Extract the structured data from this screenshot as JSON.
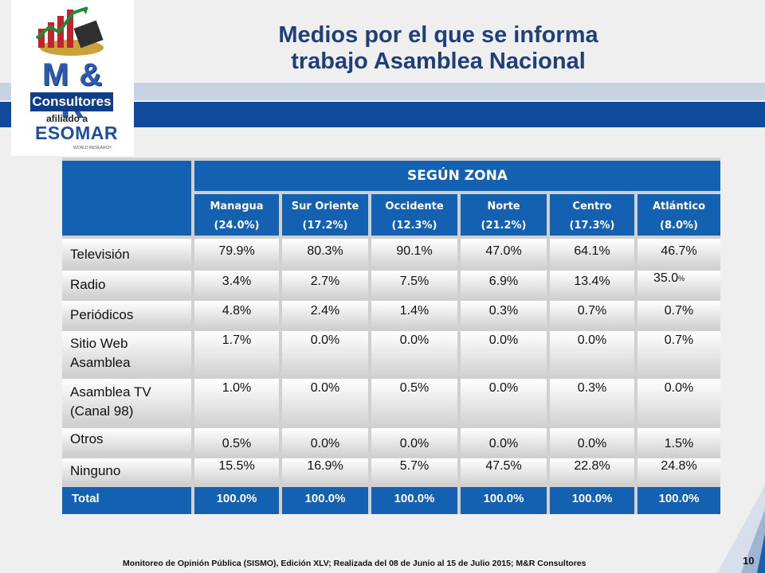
{
  "header": {
    "title_line1": "Medios por el que se informa",
    "title_line2": "trabajo Asamblea Nacional"
  },
  "logo": {
    "brand": "M & R",
    "name": "Consultores",
    "affiliation": "afiliado a",
    "partner": "ESOMAR",
    "partner_sub": "WORLD RESEARCH"
  },
  "table": {
    "group_header": "SEGÚN ZONA",
    "columns": [
      {
        "name": "Managua",
        "share": "(24.0%)"
      },
      {
        "name": "Sur Oriente",
        "share": "(17.2%)"
      },
      {
        "name": "Occidente",
        "share": "(12.3%)"
      },
      {
        "name": "Norte",
        "share": "(21.2%)"
      },
      {
        "name": "Centro",
        "share": "(17.3%)"
      },
      {
        "name": "Atlántico",
        "share": "(8.0%)"
      }
    ],
    "rows": [
      {
        "label": "Televisión",
        "values": [
          "79.9%",
          "80.3%",
          "90.1%",
          "47.0%",
          "64.1%",
          "46.7%"
        ]
      },
      {
        "label": "Radio",
        "values": [
          "3.4%",
          "2.7%",
          "7.5%",
          "6.9%",
          "13.4%",
          "35.0"
        ]
      },
      {
        "label": "Periódicos",
        "values": [
          "4.8%",
          "2.4%",
          "1.4%",
          "0.3%",
          "0.7%",
          "0.7%"
        ]
      },
      {
        "label": "Sitio Web Asamblea",
        "values": [
          "1.7%",
          "0.0%",
          "0.0%",
          "0.0%",
          "0.0%",
          "0.7%"
        ]
      },
      {
        "label": "Asamblea TV (Canal 98)",
        "values": [
          "1.0%",
          "0.0%",
          "0.5%",
          "0.0%",
          "0.3%",
          "0.0%"
        ]
      },
      {
        "label": "Otros",
        "values": [
          "0.5%",
          "0.0%",
          "0.0%",
          "0.0%",
          "0.0%",
          "1.5%"
        ]
      },
      {
        "label": "Ninguno",
        "values": [
          "15.5%",
          "16.9%",
          "5.7%",
          "47.5%",
          "22.8%",
          "24.8%"
        ]
      }
    ],
    "total": {
      "label": "Total",
      "values": [
        "100.0%",
        "100.0%",
        "100.0%",
        "100.0%",
        "100.0%",
        "100.0%"
      ]
    },
    "radio_atlantico_suffix": "%"
  },
  "footer": {
    "source": "Monitoreo de Opinión Pública (SISMO), Edición XLV; Realizada del 08 de Junio al 15 de Julio 2015; M&R Consultores",
    "page_number": "10"
  },
  "colors": {
    "header_blue": "#1460b1",
    "title_navy": "#1f3f7a",
    "band_dark": "#0f4a9c",
    "band_light": "#c7d3e3"
  }
}
